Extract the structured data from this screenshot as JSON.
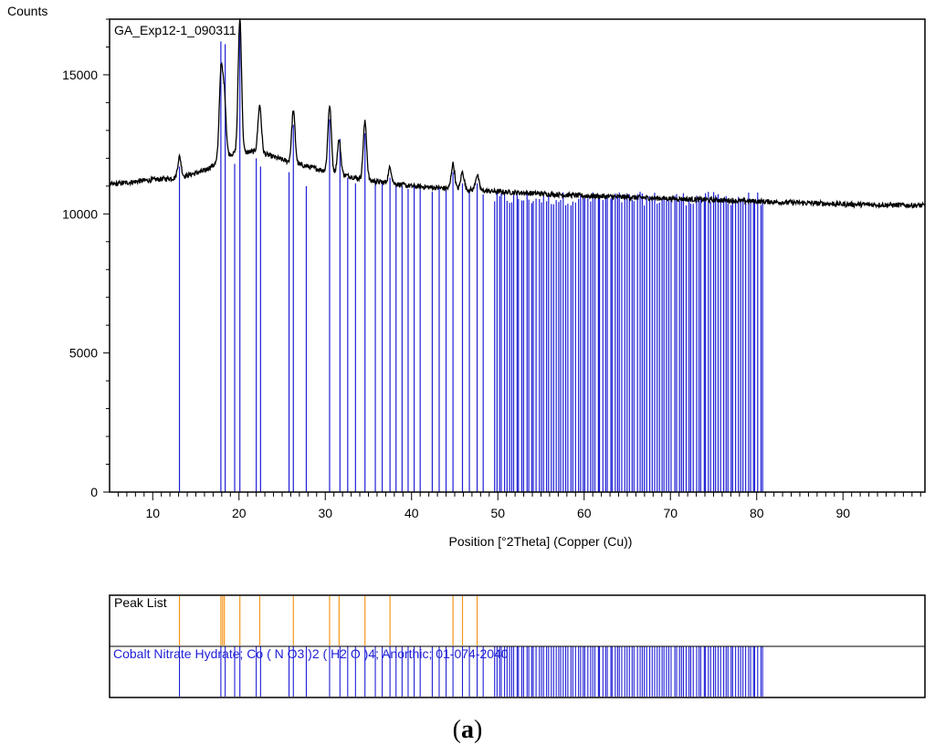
{
  "chart_data": [
    {
      "type": "line",
      "title": "GA_Exp12-1_090311",
      "ylabel": "Counts",
      "xlabel": "Position [°2Theta] (Copper (Cu))",
      "xlim": [
        5,
        99.5
      ],
      "ylim": [
        0,
        17000
      ],
      "x_ticks": [
        10,
        20,
        30,
        40,
        50,
        60,
        70,
        80,
        90
      ],
      "x_tick_labels": [
        "10",
        "20",
        "30",
        "40",
        "50",
        "60",
        "70",
        "80",
        "90"
      ],
      "y_ticks": [
        0,
        5000,
        10000,
        15000
      ],
      "y_tick_labels": [
        "0",
        "5000",
        "10000",
        "15000"
      ],
      "grid": false,
      "series": [
        {
          "name": "GA_Exp12-1_090311",
          "color": "#000000",
          "baseline": [
            [
              5,
              11050
            ],
            [
              9,
              11200
            ],
            [
              13,
              11300
            ],
            [
              16,
              11550
            ],
            [
              19,
              12150
            ],
            [
              22,
              12250
            ],
            [
              26,
              11850
            ],
            [
              30,
              11550
            ],
            [
              35,
              11200
            ],
            [
              40,
              11000
            ],
            [
              45,
              10900
            ],
            [
              50,
              10800
            ],
            [
              60,
              10650
            ],
            [
              70,
              10550
            ],
            [
              80,
              10450
            ],
            [
              90,
              10350
            ],
            [
              99.5,
              10300
            ]
          ],
          "peaks": [
            {
              "x": 13.1,
              "y": 12050
            },
            {
              "x": 17.9,
              "y": 15000
            },
            {
              "x": 18.3,
              "y": 14200
            },
            {
              "x": 20.1,
              "y": 17000
            },
            {
              "x": 22.4,
              "y": 13900
            },
            {
              "x": 26.3,
              "y": 13700
            },
            {
              "x": 30.5,
              "y": 13900
            },
            {
              "x": 31.6,
              "y": 12650
            },
            {
              "x": 34.6,
              "y": 13300
            },
            {
              "x": 37.5,
              "y": 11650
            },
            {
              "x": 44.8,
              "y": 11800
            },
            {
              "x": 45.9,
              "y": 11500
            },
            {
              "x": 47.6,
              "y": 11400
            }
          ]
        },
        {
          "name": "Cobalt Nitrate Hydrate; Co ( N O3 )2 ( H2 O )4; Anorthic; 01-074-2040",
          "color": "#1f1fd6",
          "sticks": [
            {
              "x": 13.1,
              "y": 11700
            },
            {
              "x": 17.9,
              "y": 16200
            },
            {
              "x": 18.4,
              "y": 16100
            },
            {
              "x": 19.5,
              "y": 11800
            },
            {
              "x": 20.1,
              "y": 16800
            },
            {
              "x": 22.0,
              "y": 12000
            },
            {
              "x": 22.5,
              "y": 11700
            },
            {
              "x": 25.8,
              "y": 11500
            },
            {
              "x": 26.3,
              "y": 13200
            },
            {
              "x": 27.8,
              "y": 11000
            },
            {
              "x": 30.5,
              "y": 13400
            },
            {
              "x": 31.7,
              "y": 12700
            },
            {
              "x": 32.6,
              "y": 11300
            },
            {
              "x": 33.5,
              "y": 11100
            },
            {
              "x": 34.6,
              "y": 12900
            },
            {
              "x": 35.8,
              "y": 11200
            },
            {
              "x": 36.6,
              "y": 11100
            },
            {
              "x": 37.5,
              "y": 11300
            },
            {
              "x": 38.2,
              "y": 11100
            },
            {
              "x": 38.9,
              "y": 11000
            },
            {
              "x": 39.6,
              "y": 10900
            },
            {
              "x": 40.3,
              "y": 11000
            },
            {
              "x": 41.0,
              "y": 10900
            },
            {
              "x": 42.4,
              "y": 10800
            },
            {
              "x": 43.2,
              "y": 11000
            },
            {
              "x": 44.0,
              "y": 10900
            },
            {
              "x": 44.8,
              "y": 11500
            },
            {
              "x": 45.9,
              "y": 11100
            },
            {
              "x": 46.7,
              "y": 10800
            },
            {
              "x": 47.6,
              "y": 11100
            },
            {
              "x": 48.3,
              "y": 10700
            }
          ],
          "dense_region": {
            "from": 49.6,
            "to": 80.7,
            "count": 110,
            "y_min": 10300,
            "y_max": 10800
          }
        }
      ]
    },
    {
      "type": "line",
      "title": "Peak List",
      "series": [
        {
          "name": "Peak List",
          "color": "#f5961e",
          "positions": [
            13.1,
            17.9,
            18.1,
            18.3,
            20.1,
            22.4,
            26.3,
            30.5,
            31.6,
            34.6,
            37.5,
            44.8,
            45.9,
            47.6
          ]
        },
        {
          "name": "Cobalt Nitrate Hydrate; Co ( N O3 )2 ( H2 O )4; Anorthic; 01-074-2040",
          "color": "#1f1fd6",
          "sticks_ref": "chart_data.0.series.1"
        }
      ]
    }
  ],
  "panel_label": {
    "open": "(",
    "letter": "a",
    "close": ")"
  },
  "colors": {
    "pattern": "#000000",
    "reference": "#1f1fd6",
    "peaks": "#f5961e",
    "frame": "#000000"
  }
}
